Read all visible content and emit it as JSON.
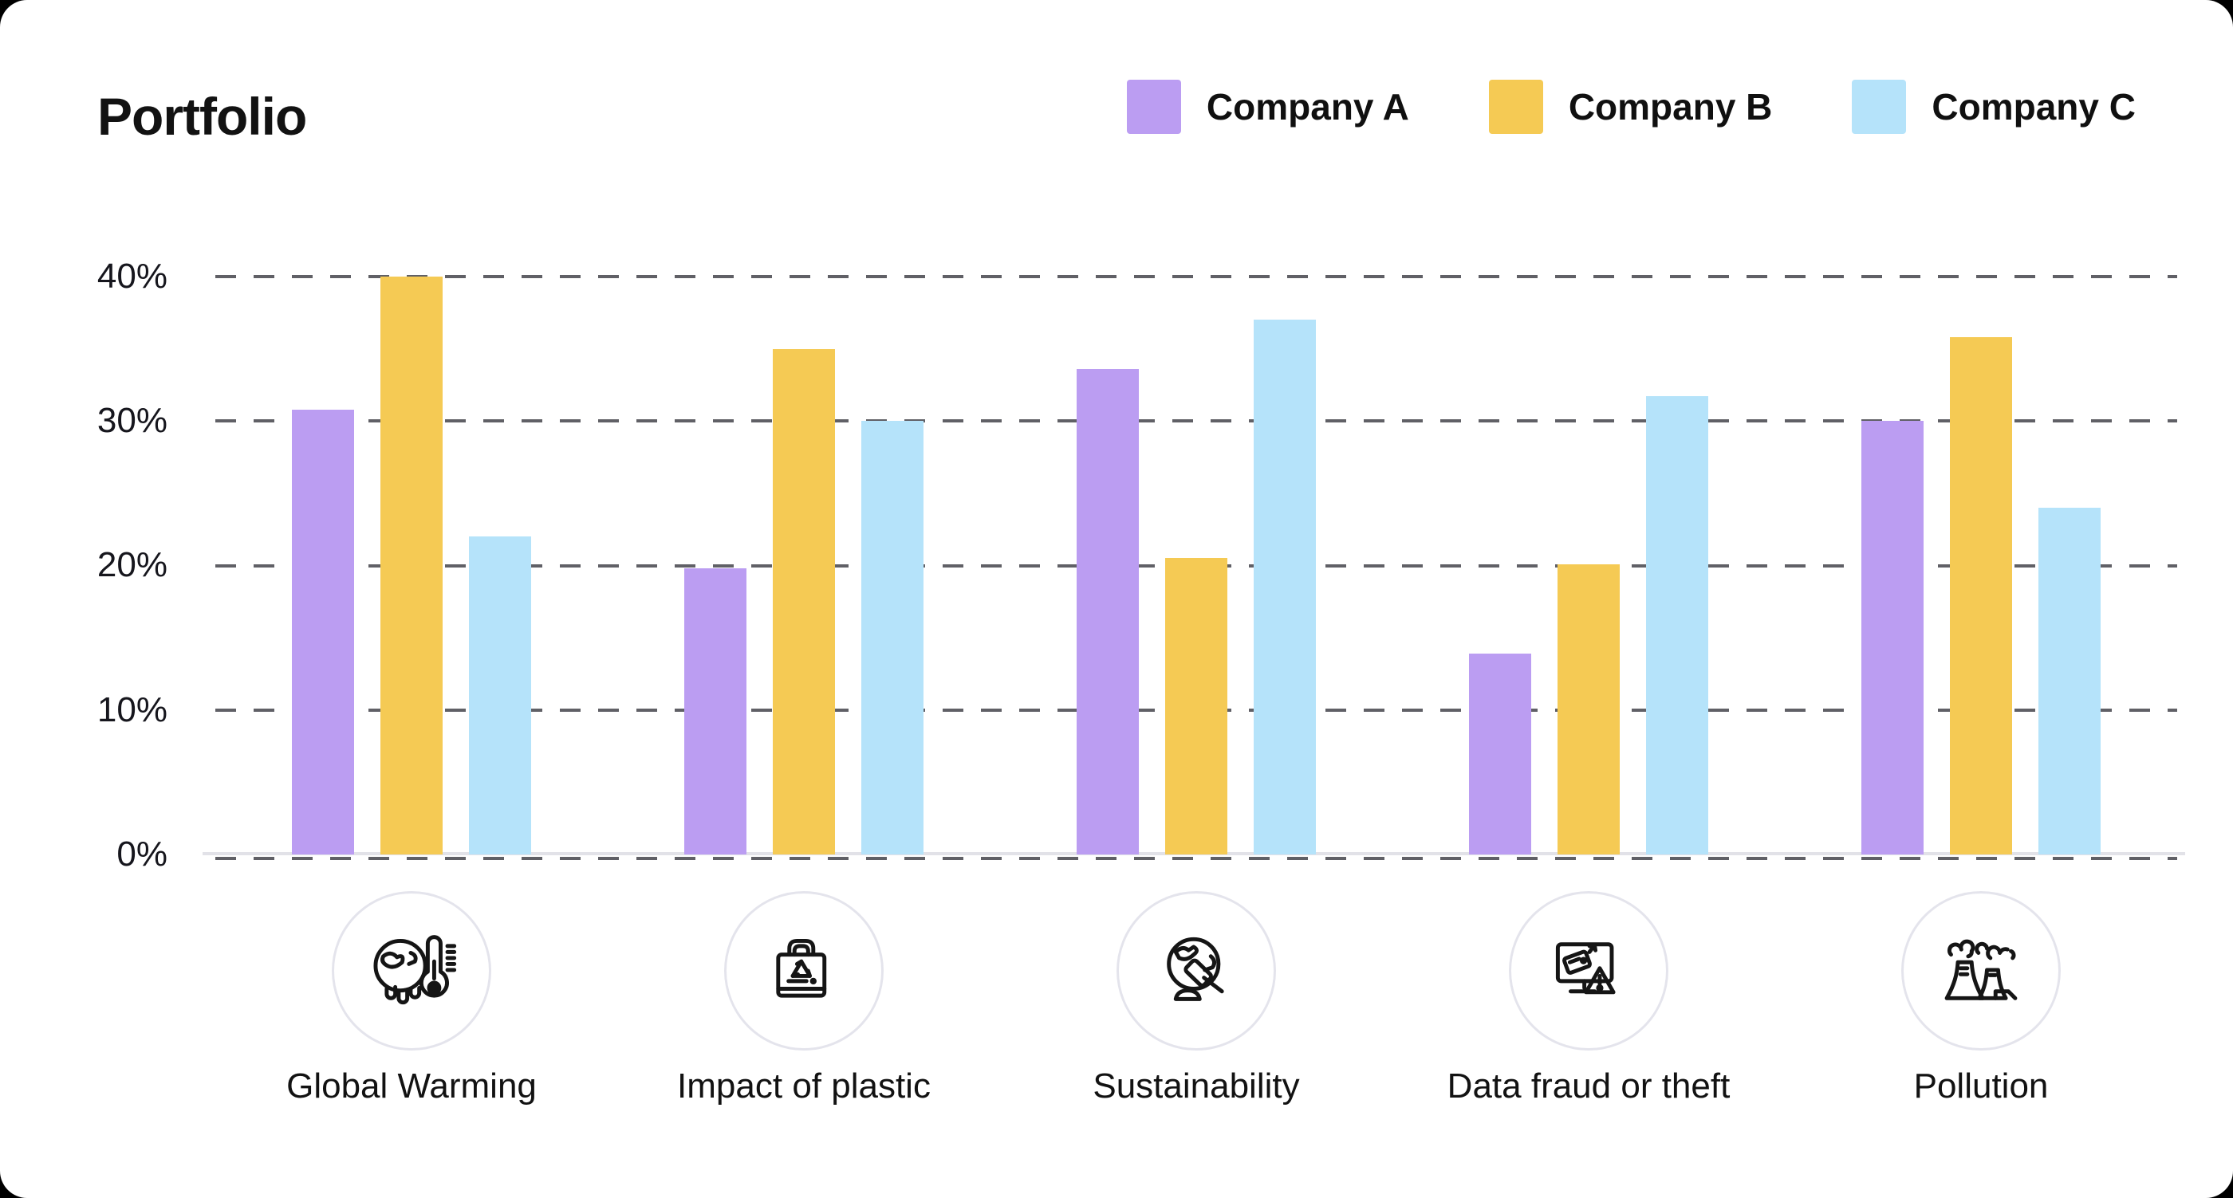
{
  "page": {
    "background": "#000000",
    "card_background": "#ffffff"
  },
  "header": {
    "title": "Portfolio"
  },
  "legend": [
    {
      "label": "Company A",
      "color": "#BB9DF2"
    },
    {
      "label": "Company B",
      "color": "#F5CA54"
    },
    {
      "label": "Company C",
      "color": "#B5E3FA"
    }
  ],
  "chart_data": {
    "type": "bar",
    "title": "Portfolio",
    "categories": [
      "Global Warming",
      "Impact of plastic",
      "Sustainability",
      "Data fraud or theft",
      "Pollution"
    ],
    "category_icons": [
      "global-warming-icon",
      "plastic-bag-recycle-icon",
      "globe-gavel-icon",
      "data-fraud-monitor-icon",
      "pollution-factory-icon"
    ],
    "series": [
      {
        "name": "Company A",
        "color": "#BB9DF2",
        "values": [
          30.8,
          19.8,
          33.6,
          13.9,
          30.0
        ]
      },
      {
        "name": "Company B",
        "color": "#F5CA54",
        "values": [
          40.0,
          35.0,
          20.5,
          20.1,
          35.8
        ]
      },
      {
        "name": "Company C",
        "color": "#B5E3FA",
        "values": [
          22.0,
          30.0,
          37.0,
          31.7,
          24.0
        ]
      }
    ],
    "y_ticks": [
      "40%",
      "30%",
      "20%",
      "10%",
      "0%"
    ],
    "ylim": [
      0,
      40
    ],
    "grid": "dashed-horizontal",
    "legend_position": "top-right"
  }
}
